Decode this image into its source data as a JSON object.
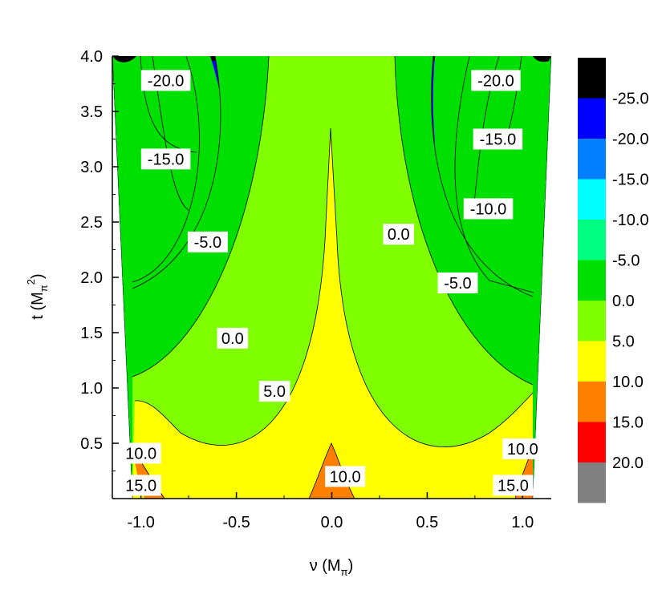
{
  "chart_data": {
    "type": "heatmap",
    "subtype": "filled-contour",
    "xlabel": "ν (Mπ)",
    "ylabel": "t (Mπ²)",
    "xlim": [
      -1.15,
      1.15
    ],
    "ylim": [
      0.0,
      4.0
    ],
    "x_ticks": [
      "-1.0",
      "-0.5",
      "0.0",
      "0.5",
      "1.0"
    ],
    "x_tick_values": [
      -1.0,
      -0.5,
      0.0,
      0.5,
      1.0
    ],
    "y_ticks": [
      "0.5",
      "1.0",
      "1.5",
      "2.0",
      "2.5",
      "3.0",
      "3.5",
      "4.0"
    ],
    "y_tick_values": [
      0.5,
      1.0,
      1.5,
      2.0,
      2.5,
      3.0,
      3.5,
      4.0
    ],
    "levels": [
      -25,
      -20,
      -15,
      -10,
      -5,
      0,
      5,
      10,
      15,
      20
    ],
    "level_colors": [
      "#000000",
      "#0000ff",
      "#0080ff",
      "#00ffff",
      "#00ff80",
      "#00e000",
      "#80ff00",
      "#ffff00",
      "#ff8000",
      "#ff0000",
      "#808080"
    ],
    "colorbar_labels": [
      "-25.0",
      "-20.0",
      "-15.0",
      "-10.0",
      "-5.0",
      "0.0",
      "5.0",
      "10.0",
      "15.0",
      "20.0"
    ],
    "contour_labels": [
      {
        "text": "-20.0",
        "nu": -0.87,
        "t": 3.78
      },
      {
        "text": "-20.0",
        "nu": 0.86,
        "t": 3.78
      },
      {
        "text": "-15.0",
        "nu": -0.87,
        "t": 3.07
      },
      {
        "text": "-15.0",
        "nu": 0.87,
        "t": 3.25
      },
      {
        "text": "-10.0",
        "nu": 0.82,
        "t": 2.62
      },
      {
        "text": "-5.0",
        "nu": -0.65,
        "t": 2.32
      },
      {
        "text": "-5.0",
        "nu": 0.66,
        "t": 1.95
      },
      {
        "text": "0.0",
        "nu": 0.35,
        "t": 2.39
      },
      {
        "text": "0.0",
        "nu": -0.52,
        "t": 1.45
      },
      {
        "text": "5.0",
        "nu": -0.3,
        "t": 0.97
      },
      {
        "text": "10.0",
        "nu": -1.0,
        "t": 0.41
      },
      {
        "text": "10.0",
        "nu": 1.0,
        "t": 0.45
      },
      {
        "text": "10.0",
        "nu": 0.07,
        "t": 0.2
      },
      {
        "text": "15.0",
        "nu": -1.0,
        "t": 0.12
      },
      {
        "text": "15.0",
        "nu": 0.95,
        "t": 0.12
      }
    ]
  }
}
